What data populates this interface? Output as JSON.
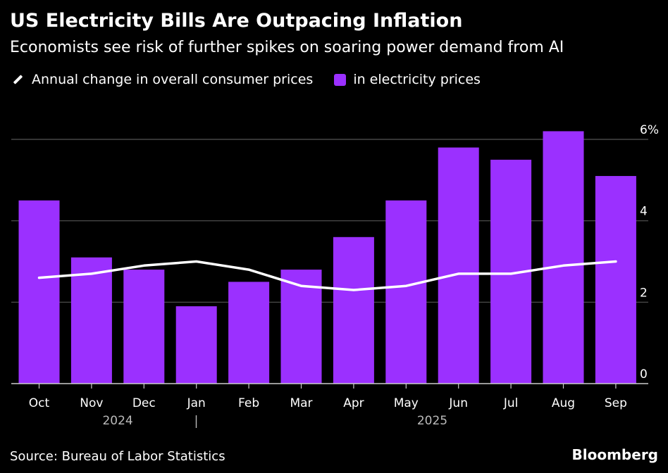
{
  "header": {
    "title": "US Electricity Bills Are Outpacing Inflation",
    "subtitle": "Economists see risk of further spikes on soaring power demand from AI"
  },
  "legend": {
    "line_label": "Annual change in overall consumer prices",
    "bar_label": "in electricity prices"
  },
  "footer": {
    "source": "Source: Bureau of Labor Statistics",
    "brand": "Bloomberg"
  },
  "colors": {
    "bar": "#9B30FF",
    "line": "#FFFFFF",
    "grid": "#555555",
    "background": "#000000"
  },
  "chart_data": {
    "type": "bar",
    "categories": [
      "Oct",
      "Nov",
      "Dec",
      "Jan",
      "Feb",
      "Mar",
      "Apr",
      "May",
      "Jun",
      "Jul",
      "Aug",
      "Sep"
    ],
    "year_labels": [
      {
        "label": "2024",
        "category_index": 1.5
      },
      {
        "label": "2025",
        "category_index": 7.5
      }
    ],
    "year_divider_after_index": 2.5,
    "series": [
      {
        "name": "in electricity prices",
        "type": "bar",
        "values": [
          4.5,
          3.1,
          2.8,
          1.9,
          2.5,
          2.8,
          3.6,
          4.5,
          5.8,
          5.5,
          6.2,
          5.1
        ]
      },
      {
        "name": "Annual change in overall consumer prices",
        "type": "line",
        "values": [
          2.6,
          2.7,
          2.9,
          3.0,
          2.8,
          2.4,
          2.3,
          2.4,
          2.7,
          2.7,
          2.9,
          3.0
        ]
      }
    ],
    "ylim": [
      0,
      6
    ],
    "yticks": [
      0,
      2,
      4,
      6
    ],
    "ytick_labels": [
      "0",
      "2",
      "4",
      "6%"
    ],
    "grid": true,
    "legend_position": "top-left"
  }
}
